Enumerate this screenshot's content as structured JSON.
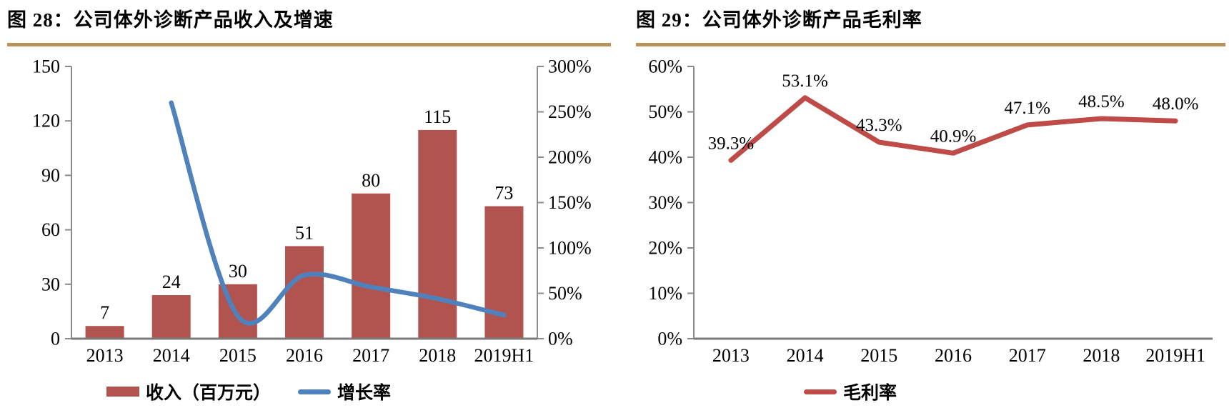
{
  "page": {
    "background": "#FFFFFF",
    "accent_rule_color": "#B9935A",
    "axis_color": "#8A8A8A",
    "baseline_color": "#7A7A7A",
    "text_color": "#000000"
  },
  "chart_data": [
    {
      "type": "bar",
      "title": "图 28：公司体外诊断产品收入及增速",
      "categories": [
        "2013",
        "2014",
        "2015",
        "2016",
        "2017",
        "2018",
        "2019H1"
      ],
      "series": [
        {
          "name": "收入（百万元）",
          "kind": "bar",
          "axis": "left",
          "color": "#B15450",
          "values": [
            7,
            24,
            30,
            51,
            80,
            115,
            73
          ],
          "data_labels": [
            "7",
            "24",
            "30",
            "51",
            "80",
            "115",
            "73"
          ]
        },
        {
          "name": "增长率",
          "kind": "line",
          "axis": "right",
          "color": "#4F81BD",
          "smooth": true,
          "values": [
            null,
            260,
            25,
            70,
            57,
            44,
            26
          ],
          "data_labels": null
        }
      ],
      "left_axis": {
        "min": 0,
        "max": 150,
        "step": 30,
        "ticks": [
          "0",
          "30",
          "60",
          "90",
          "120",
          "150"
        ]
      },
      "right_axis": {
        "min": 0,
        "max": 300,
        "step": 50,
        "ticks": [
          "0%",
          "50%",
          "100%",
          "150%",
          "200%",
          "250%",
          "300%"
        ]
      },
      "legend_position": "bottom",
      "grid": false
    },
    {
      "type": "line",
      "title": "图 29：公司体外诊断产品毛利率",
      "categories": [
        "2013",
        "2014",
        "2015",
        "2016",
        "2017",
        "2018",
        "2019H1"
      ],
      "series": [
        {
          "name": "毛利率",
          "kind": "line",
          "axis": "left",
          "color": "#BE4B48",
          "smooth": false,
          "values": [
            39.3,
            53.1,
            43.3,
            40.9,
            47.1,
            48.5,
            48.0
          ],
          "data_labels": [
            "39.3%",
            "53.1%",
            "43.3%",
            "40.9%",
            "47.1%",
            "48.5%",
            "48.0%"
          ]
        }
      ],
      "left_axis": {
        "min": 0,
        "max": 60,
        "step": 10,
        "ticks": [
          "0%",
          "10%",
          "20%",
          "30%",
          "40%",
          "50%",
          "60%"
        ]
      },
      "legend_position": "bottom",
      "grid": false
    }
  ]
}
